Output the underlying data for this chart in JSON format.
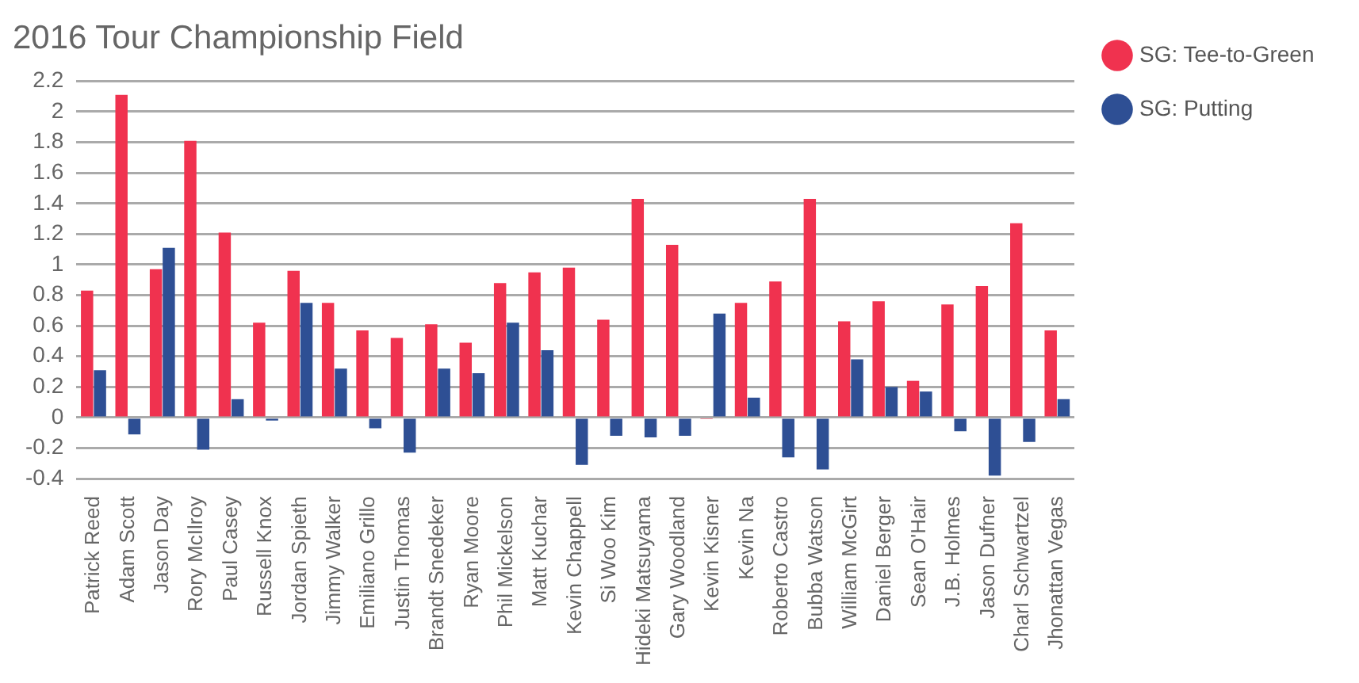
{
  "chart_data": {
    "type": "bar",
    "title": "2016 Tour Championship Field",
    "categories": [
      "Patrick Reed",
      "Adam Scott",
      "Jason Day",
      "Rory McIlroy",
      "Paul Casey",
      "Russell Knox",
      "Jordan Spieth",
      "Jimmy Walker",
      "Emiliano Grillo",
      "Justin Thomas",
      "Brandt Snedeker",
      "Ryan Moore",
      "Phil Mickelson",
      "Matt Kuchar",
      "Kevin Chappell",
      "Si Woo Kim",
      "Hideki Matsuyama",
      "Gary Woodland",
      "Kevin Kisner",
      "Kevin Na",
      "Roberto Castro",
      "Bubba Watson",
      "William McGirt",
      "Daniel Berger",
      "Sean O'Hair",
      "J.B. Holmes",
      "Jason Dufner",
      "Charl Schwartzel",
      "Jhonattan Vegas"
    ],
    "series": [
      {
        "name": "SG: Tee-to-Green",
        "color": "#f0324f",
        "values": [
          0.83,
          2.11,
          0.97,
          1.81,
          1.21,
          0.62,
          0.96,
          0.75,
          0.57,
          0.52,
          0.61,
          0.49,
          0.88,
          0.95,
          0.98,
          0.64,
          1.43,
          1.13,
          -0.01,
          0.75,
          0.89,
          1.43,
          0.63,
          0.76,
          0.24,
          0.74,
          0.86,
          1.27,
          0.57
        ]
      },
      {
        "name": "SG: Putting",
        "color": "#2e4f94",
        "values": [
          0.31,
          -0.11,
          1.11,
          -0.21,
          0.12,
          -0.02,
          0.75,
          0.32,
          -0.07,
          -0.23,
          0.32,
          0.29,
          0.62,
          0.44,
          -0.31,
          -0.12,
          -0.13,
          -0.12,
          0.68,
          0.13,
          -0.26,
          -0.34,
          0.38,
          0.2,
          0.17,
          -0.09,
          -0.38,
          -0.16,
          0.12
        ]
      }
    ],
    "ylim": [
      -0.4,
      2.2
    ],
    "yticks": [
      -0.4,
      -0.2,
      0,
      0.2,
      0.4,
      0.6,
      0.8,
      1,
      1.2,
      1.4,
      1.6,
      1.8,
      2,
      2.2
    ],
    "grid": "y",
    "legend": "right"
  }
}
